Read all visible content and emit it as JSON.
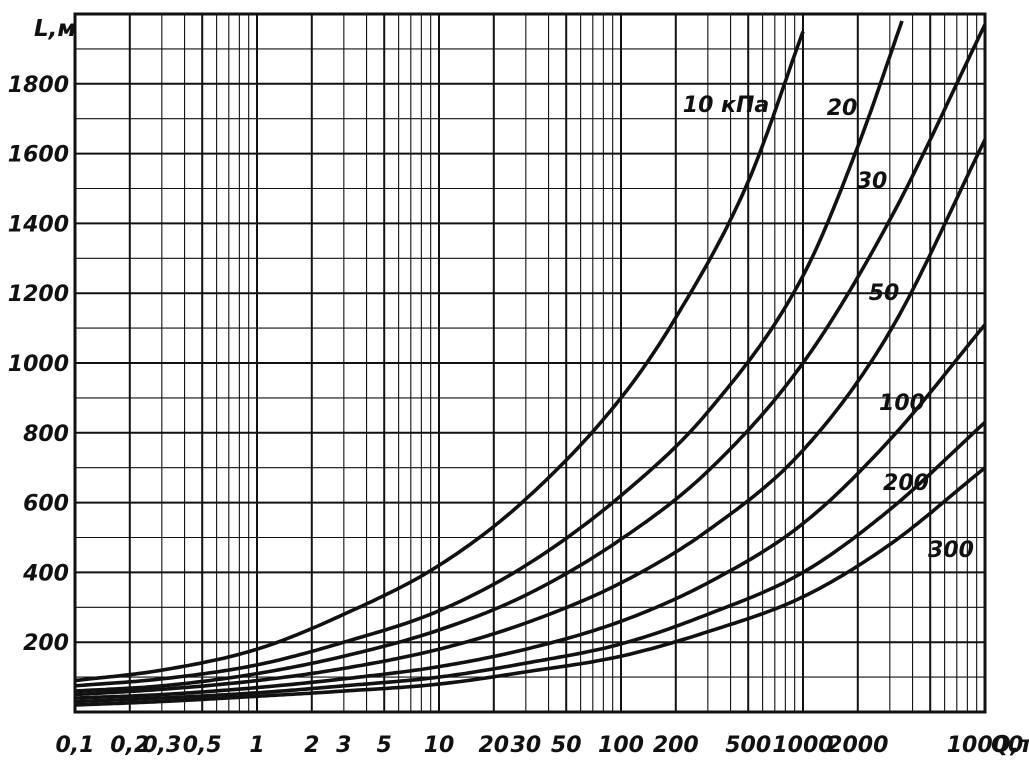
{
  "chart_data": {
    "type": "line",
    "xlabel": "Q,т",
    "ylabel": "L,м",
    "xscale": "log",
    "xlim": [
      0.1,
      10000
    ],
    "ylim": [
      0,
      2000
    ],
    "x_ticks": [
      0.1,
      0.2,
      0.3,
      0.5,
      1,
      2,
      3,
      5,
      10,
      20,
      30,
      50,
      100,
      200,
      500,
      1000,
      2000,
      10000
    ],
    "x_tick_labels": [
      "0,1",
      "0,2",
      "0,3",
      "0,5",
      "1",
      "2",
      "3",
      "5",
      "10",
      "20",
      "30",
      "50",
      "100",
      "200",
      "500",
      "1000",
      "2000",
      "10000"
    ],
    "y_ticks": [
      200,
      400,
      600,
      800,
      1000,
      1200,
      1400,
      1600,
      1800
    ],
    "y_tick_labels": [
      "200",
      "400",
      "600",
      "800",
      "1000",
      "1200",
      "1400",
      "1600",
      "1800"
    ],
    "grid": true,
    "legend": "none",
    "line_color": "#111111",
    "series": [
      {
        "name": "10 кПа",
        "x": [
          0.1,
          0.3,
          1,
          3,
          10,
          30,
          100,
          200,
          500,
          1000
        ],
        "y": [
          90,
          120,
          180,
          280,
          420,
          610,
          900,
          1130,
          1520,
          1950
        ]
      },
      {
        "name": "20",
        "x": [
          0.1,
          0.3,
          1,
          3,
          10,
          30,
          100,
          300,
          1000,
          2000,
          3500
        ],
        "y": [
          75,
          95,
          135,
          200,
          290,
          420,
          620,
          860,
          1250,
          1620,
          1980
        ]
      },
      {
        "name": "30",
        "x": [
          0.1,
          0.3,
          1,
          3,
          10,
          30,
          100,
          300,
          1000,
          3000,
          10000
        ],
        "y": [
          60,
          75,
          110,
          160,
          235,
          335,
          495,
          690,
          1000,
          1410,
          1970
        ]
      },
      {
        "name": "50",
        "x": [
          0.1,
          0.3,
          1,
          3,
          10,
          30,
          100,
          300,
          1000,
          3000,
          10000
        ],
        "y": [
          50,
          65,
          90,
          125,
          180,
          255,
          370,
          520,
          750,
          1090,
          1640
        ]
      },
      {
        "name": "100",
        "x": [
          0.1,
          0.3,
          1,
          3,
          10,
          30,
          100,
          300,
          1000,
          3000,
          10000
        ],
        "y": [
          40,
          50,
          70,
          95,
          130,
          180,
          260,
          370,
          540,
          780,
          1110
        ]
      },
      {
        "name": "200",
        "x": [
          0.1,
          0.3,
          1,
          3,
          10,
          30,
          100,
          300,
          1000,
          3000,
          10000
        ],
        "y": [
          30,
          40,
          55,
          75,
          100,
          140,
          195,
          280,
          400,
          580,
          830
        ]
      },
      {
        "name": "300",
        "x": [
          0.1,
          0.3,
          1,
          3,
          10,
          30,
          100,
          300,
          1000,
          3000,
          10000
        ],
        "y": [
          20,
          30,
          45,
          60,
          80,
          115,
          160,
          230,
          330,
          480,
          700
        ]
      }
    ],
    "curve_labels": [
      "10 кПа",
      "20",
      "30",
      "50",
      "100",
      "200",
      "300"
    ]
  }
}
